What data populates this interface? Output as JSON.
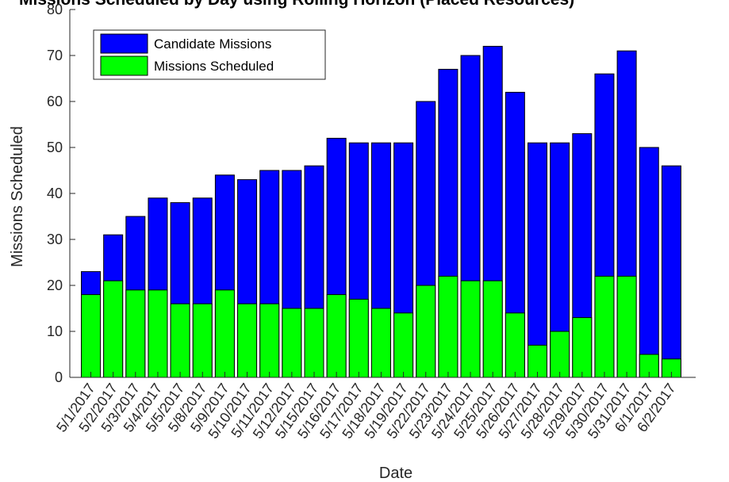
{
  "chart_data": {
    "type": "bar",
    "title": "Missions Scheduled by Day using Rolling Horizon (Placed Resources)",
    "xlabel": "Date",
    "ylabel": "Missions Scheduled",
    "ylim": [
      0,
      80
    ],
    "yticks": [
      0,
      10,
      20,
      30,
      40,
      50,
      60,
      70,
      80
    ],
    "grid": false,
    "legend_position": "top-left",
    "categories": [
      "5/1/2017",
      "5/2/2017",
      "5/3/2017",
      "5/4/2017",
      "5/5/2017",
      "5/8/2017",
      "5/9/2017",
      "5/10/2017",
      "5/11/2017",
      "5/12/2017",
      "5/15/2017",
      "5/16/2017",
      "5/17/2017",
      "5/18/2017",
      "5/19/2017",
      "5/22/2017",
      "5/23/2017",
      "5/24/2017",
      "5/25/2017",
      "5/26/2017",
      "5/27/2017",
      "5/28/2017",
      "5/29/2017",
      "5/30/2017",
      "5/31/2017",
      "6/1/2017",
      "6/2/2017"
    ],
    "series": [
      {
        "name": "Candidate Missions",
        "color": "#0000ff",
        "values": [
          23,
          31,
          35,
          39,
          38,
          39,
          44,
          43,
          45,
          45,
          46,
          52,
          51,
          51,
          51,
          60,
          67,
          70,
          72,
          62,
          51,
          51,
          53,
          66,
          71,
          50,
          46
        ]
      },
      {
        "name": "Missions Scheduled",
        "color": "#00ff00",
        "values": [
          18,
          21,
          19,
          19,
          16,
          16,
          19,
          16,
          16,
          15,
          15,
          18,
          17,
          15,
          14,
          20,
          22,
          21,
          21,
          14,
          7,
          10,
          13,
          22,
          22,
          5,
          4
        ]
      }
    ]
  }
}
